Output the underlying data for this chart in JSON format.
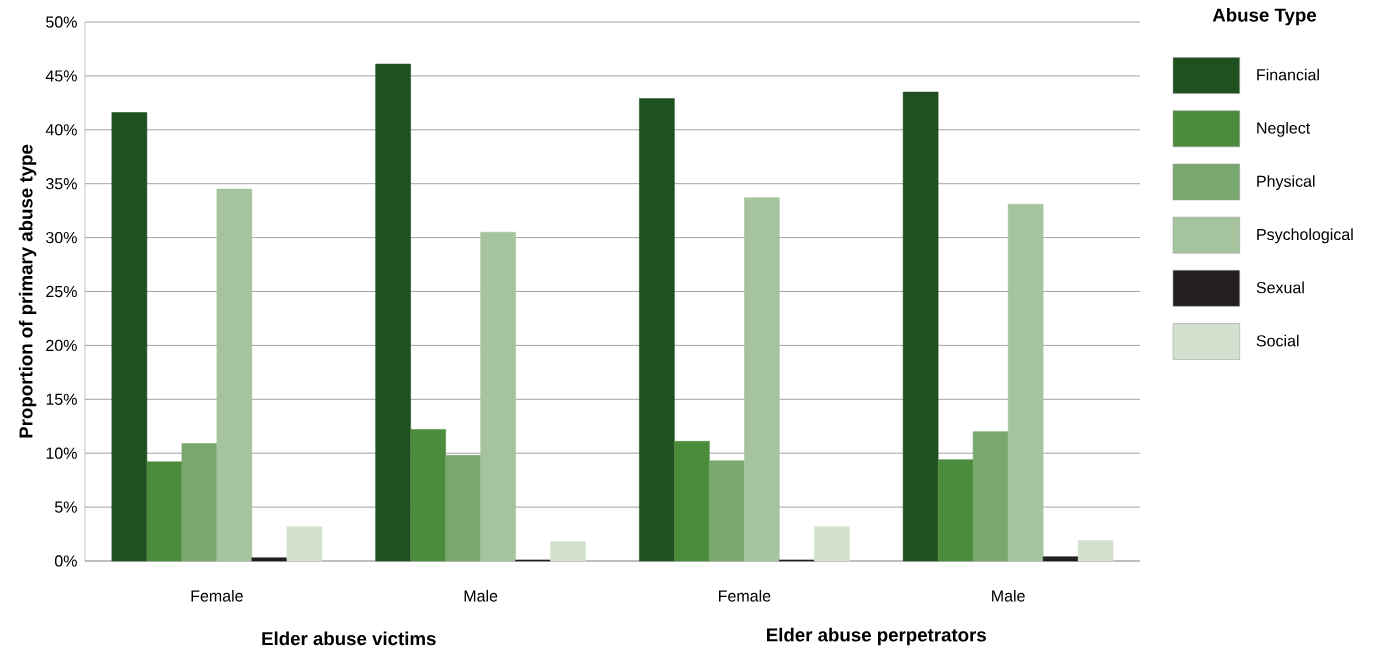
{
  "chart_data": {
    "type": "bar",
    "ylabel": "Proportion of primary abuse type",
    "legend_title": "Abuse Type",
    "legend": "right",
    "grid": "y",
    "categories": [
      "Female",
      "Male",
      "Female",
      "Male"
    ],
    "annotations": [
      "Elder abuse victims",
      "Elder abuse perpetrators"
    ],
    "ylim": [
      0,
      50
    ],
    "yticks": [
      {
        "value": 0,
        "label": "0%"
      },
      {
        "value": 5,
        "label": "5%"
      },
      {
        "value": 10,
        "label": "10%"
      },
      {
        "value": 15,
        "label": "15%"
      },
      {
        "value": 20,
        "label": "20%"
      },
      {
        "value": 25,
        "label": "25%"
      },
      {
        "value": 30,
        "label": "30%"
      },
      {
        "value": 35,
        "label": "35%"
      },
      {
        "value": 40,
        "label": "40%"
      },
      {
        "value": 45,
        "label": "45%"
      },
      {
        "value": 50,
        "label": "50%"
      }
    ],
    "series": [
      {
        "name": "Financial",
        "color": "#1f5120",
        "values": [
          41.6,
          46.1,
          42.9,
          43.5
        ]
      },
      {
        "name": "Neglect",
        "color": "#4a8b3c",
        "values": [
          9.2,
          12.2,
          11.1,
          9.4
        ]
      },
      {
        "name": "Physical",
        "color": "#78a86e",
        "values": [
          10.9,
          9.8,
          9.3,
          12.0
        ]
      },
      {
        "name": "Psychological",
        "color": "#a5c49e",
        "values": [
          34.5,
          30.5,
          33.7,
          33.1
        ]
      },
      {
        "name": "Sexual",
        "color": "#231f20",
        "values": [
          0.3,
          0.1,
          0.1,
          0.4
        ]
      },
      {
        "name": "Social",
        "color": "#d3e2cf",
        "values": [
          3.2,
          1.8,
          3.2,
          1.9
        ]
      }
    ]
  }
}
